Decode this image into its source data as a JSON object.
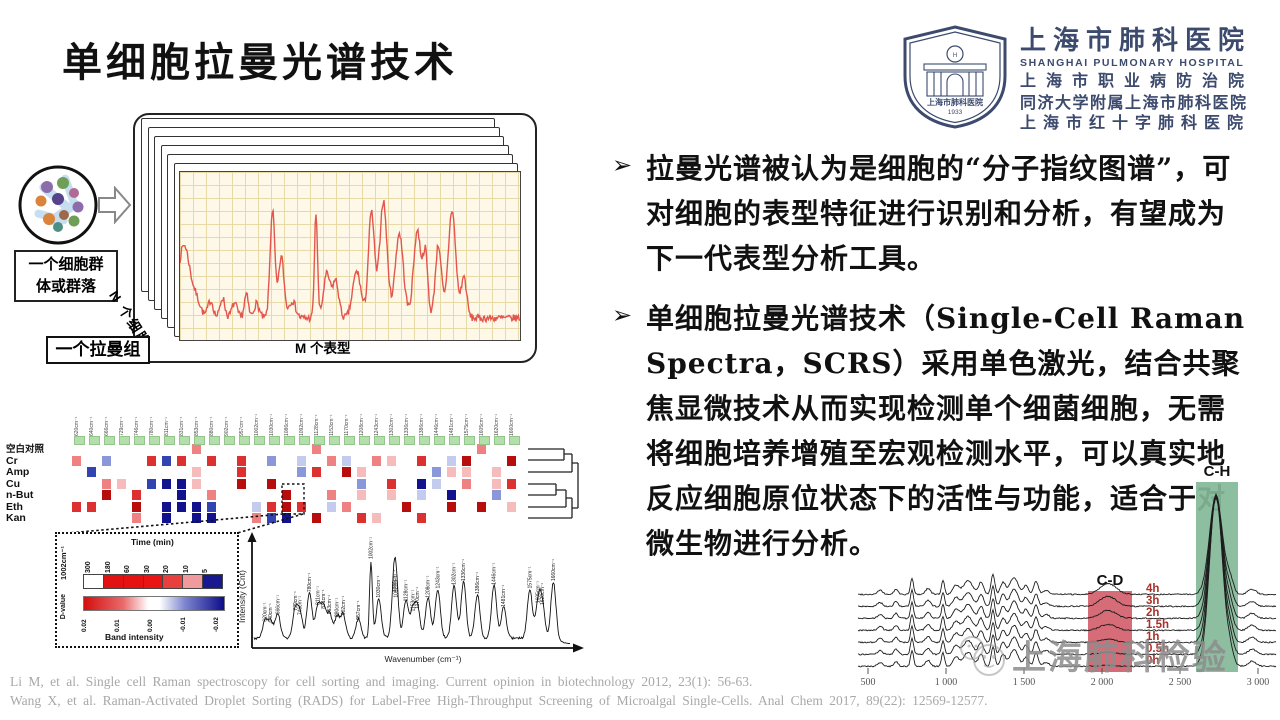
{
  "slide": {
    "title": "单细胞拉曼光谱技术"
  },
  "header_logo": {
    "hospital_cn": "上海市肺科医院",
    "hospital_en": "SHANGHAI PULMONARY HOSPITAL",
    "line_occupational": "上海市职业病防治院",
    "line_tongji": "同济大学附属上海市肺科医院",
    "line_redcross": "上海市红十字肺科医院",
    "badge_cn": "上海市肺科医院",
    "badge_year": "1933",
    "color": "#3c4a6e"
  },
  "bullets": [
    {
      "marker": "➢",
      "text": "拉曼光谱被认为是细胞的“分子指纹图谱”，可对细胞的表型特征进行识别和分析，有望成为下一代表型分析工具。"
    },
    {
      "marker": "➢",
      "text": "单细胞拉曼光谱技术（Single-Cell Raman Spectra，SCRS）采用单色激光，结合共聚焦显微技术从而实现检测单个细菌细胞，无需将细胞培养增殖至宏观检测水平，可以真实地反应细胞原位状态下的活性与功能，适合于对微生物进行分析。"
    }
  ],
  "ramanome_figure": {
    "cell_group_label_line1": "一个细胞群",
    "cell_group_label_line2": "体或群落",
    "raman_set_label": "一个拉曼组",
    "n_cells_label": "N 个细胞",
    "m_phenotype_label": "M 个表型",
    "spectrum_color": "#e4564d",
    "stack_count": 7
  },
  "heatmap_figure": {
    "row_labels": [
      "空白对照",
      "Cr",
      "Amp",
      "Cu",
      "n-But",
      "Eth",
      "Kan"
    ],
    "column_wavenumbers": [
      "620cm⁻¹",
      "640cm⁻¹",
      "666cm⁻¹",
      "729cm⁻¹",
      "746cm⁻¹",
      "780cm⁻¹",
      "811cm⁻¹",
      "831cm⁻¹",
      "853cm⁻¹",
      "880cm⁻¹",
      "902cm⁻¹",
      "957cm⁻¹",
      "1002cm⁻¹",
      "1030cm⁻¹",
      "1086cm⁻¹",
      "1092cm⁻¹",
      "1128cm⁻¹",
      "1153cm⁻¹",
      "1170cm⁻¹",
      "1208cm⁻¹",
      "1243cm⁻¹",
      "1302cm⁻¹",
      "1336cm⁻¹",
      "1386cm⁻¹",
      "1446cm⁻¹",
      "1481cm⁻¹",
      "1575cm⁻¹",
      "1605cm⁻¹",
      "1620cm⁻¹",
      "1660cm⁻¹"
    ],
    "inset": {
      "band_label": "1002cm⁻¹",
      "time_title": "Time (min)",
      "time_ticks": [
        "300",
        "180",
        "60",
        "30",
        "20",
        "10",
        "5"
      ],
      "time_colors": [
        "#ffffff",
        "#e31212",
        "#e61111",
        "#ea1414",
        "#e8403e",
        "#f09a9e",
        "#18188f"
      ],
      "dvalue_label": "D-value",
      "dvalue_ticks": [
        "0.02",
        "0.01",
        "0.00",
        "-0.01",
        "-0.02"
      ],
      "band_intensity_label": "Band intensity",
      "ylabel": "Intensity (Cnt)",
      "xlabel": "Wavenumber (cm⁻¹)"
    }
  },
  "timecourse_chart": {
    "type": "line",
    "xticks": [
      "500",
      "1 000",
      "1 500",
      "2 000",
      "2 500",
      "3 000"
    ],
    "series_labels": [
      "4h",
      "3h",
      "2h",
      "1.5h",
      "1h",
      "0.5h",
      "0h"
    ],
    "cd_band_label": "C-D",
    "ch_band_label": "C-H",
    "cd_band_color": "#cf5865",
    "ch_band_color": "#83b998",
    "series_label_color": "#a92f28"
  },
  "watermark": {
    "text": "上海肺科检验"
  },
  "references": [
    "Li M, et al. Single cell Raman spectroscopy for cell sorting and imaging. Current opinion in biotechnology 2012, 23(1): 56-63.",
    "Wang X, et al. Raman-Activated Droplet Sorting (RADS) for Label-Free High-Throughput Screening of Microalgal Single-Cells. Anal Chem 2017, 89(22): 12569-12577."
  ]
}
